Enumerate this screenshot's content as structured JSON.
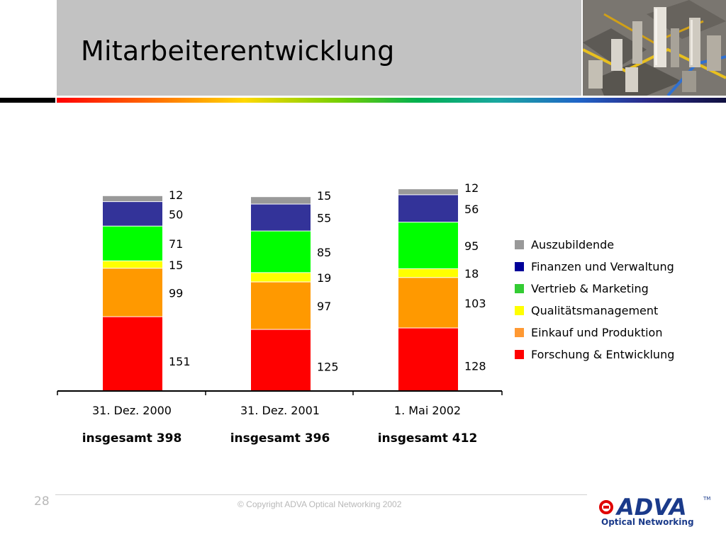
{
  "header": {
    "title": "Mitarbeiterentwicklung"
  },
  "chart_data": {
    "type": "bar",
    "stacked": true,
    "categories": [
      "31. Dez. 2000",
      "31. Dez. 2001",
      "1. Mai 2002"
    ],
    "totals": [
      "insgesamt 398",
      "insgesamt 396",
      "insgesamt 412"
    ],
    "series": [
      {
        "name": "Forschung & Entwicklung",
        "color": "#ff0000",
        "values": [
          151,
          125,
          128
        ]
      },
      {
        "name": "Einkauf und Produktion",
        "color": "#ff9900",
        "values": [
          99,
          97,
          103
        ]
      },
      {
        "name": "Qualitätsmanagement",
        "color": "#ffff00",
        "values": [
          15,
          19,
          18
        ]
      },
      {
        "name": "Vertrieb & Marketing",
        "color": "#00ff00",
        "values": [
          71,
          85,
          95
        ]
      },
      {
        "name": "Finanzen und Verwaltung",
        "color": "#333399",
        "values": [
          50,
          55,
          56
        ]
      },
      {
        "name": "Auszubildende",
        "color": "#999999",
        "values": [
          12,
          15,
          12
        ]
      }
    ],
    "legend_order": [
      "Auszubildende",
      "Finanzen und Verwaltung",
      "Vertrieb & Marketing",
      "Qualitätsmanagement",
      "Einkauf und Produktion",
      "Forschung & Entwicklung"
    ],
    "legend_position": "right",
    "grid": false
  },
  "footer": {
    "page_number": "28",
    "copyright": "© Copyright ADVA Optical Networking 2002",
    "logo_text": "ADVA",
    "logo_tm": "TM",
    "logo_subtitle": "Optical Networking"
  }
}
